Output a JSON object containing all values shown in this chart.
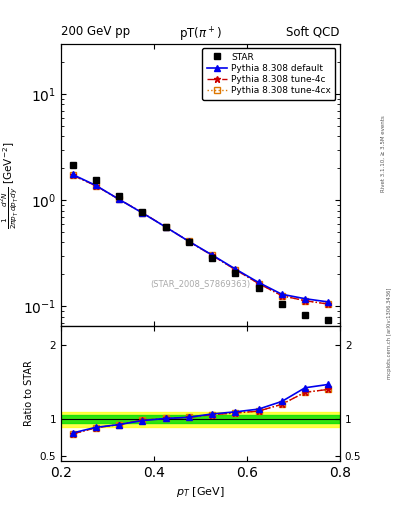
{
  "title_top_left": "200 GeV pp",
  "title_top_right": "Soft QCD",
  "plot_title": "pT(π⁺)",
  "watermark": "(STAR_2008_S7869363)",
  "right_label_bottom": "mcplots.cern.ch [arXiv:1306.3436]",
  "right_label_top": "Rivet 3.1.10, ≥ 3.5M events",
  "xlabel": "$p_T$ [GeV]",
  "ylabel_main": "$\\frac{1}{2\\pi p_T}\\frac{d^2N}{dp_T\\,dy}$ [GeV$^{-2}$]",
  "ylabel_ratio": "Ratio to STAR",
  "pt_data": [
    0.225,
    0.275,
    0.325,
    0.375,
    0.425,
    0.475,
    0.525,
    0.575,
    0.625,
    0.675,
    0.725,
    0.775
  ],
  "star_values": [
    2.15,
    1.55,
    1.1,
    0.775,
    0.555,
    0.4,
    0.285,
    0.205,
    0.148,
    0.105,
    0.083,
    0.075
  ],
  "pythia_default_values": [
    1.75,
    1.38,
    1.02,
    0.76,
    0.56,
    0.41,
    0.305,
    0.225,
    0.168,
    0.13,
    0.118,
    0.11
  ],
  "pythia_4c_values": [
    1.72,
    1.37,
    1.02,
    0.765,
    0.56,
    0.41,
    0.302,
    0.222,
    0.164,
    0.126,
    0.113,
    0.105
  ],
  "pythia_4cx_values": [
    1.72,
    1.37,
    1.02,
    0.765,
    0.56,
    0.41,
    0.302,
    0.222,
    0.164,
    0.126,
    0.113,
    0.105
  ],
  "ratio_default": [
    0.814,
    0.89,
    0.927,
    0.981,
    1.009,
    1.025,
    1.07,
    1.098,
    1.135,
    1.238,
    1.422,
    1.467
  ],
  "ratio_4c": [
    0.8,
    0.884,
    0.927,
    0.987,
    1.009,
    1.025,
    1.06,
    1.083,
    1.108,
    1.2,
    1.361,
    1.4
  ],
  "ratio_4cx": [
    0.8,
    0.884,
    0.927,
    0.987,
    1.009,
    1.025,
    1.06,
    1.083,
    1.108,
    1.2,
    1.361,
    1.4
  ],
  "color_star": "#000000",
  "color_default": "#0000ee",
  "color_4c": "#cc0000",
  "color_4cx": "#dd7700",
  "band_green_inner": 0.05,
  "band_yellow_outer": 0.1,
  "xlim": [
    0.2,
    0.8
  ],
  "ylim_main": [
    0.065,
    30
  ],
  "ylim_ratio": [
    0.44,
    2.25
  ],
  "yticks_ratio": [
    0.5,
    1.0,
    2.0
  ],
  "ytick_labels_ratio": [
    "0.5",
    "1",
    "2"
  ]
}
